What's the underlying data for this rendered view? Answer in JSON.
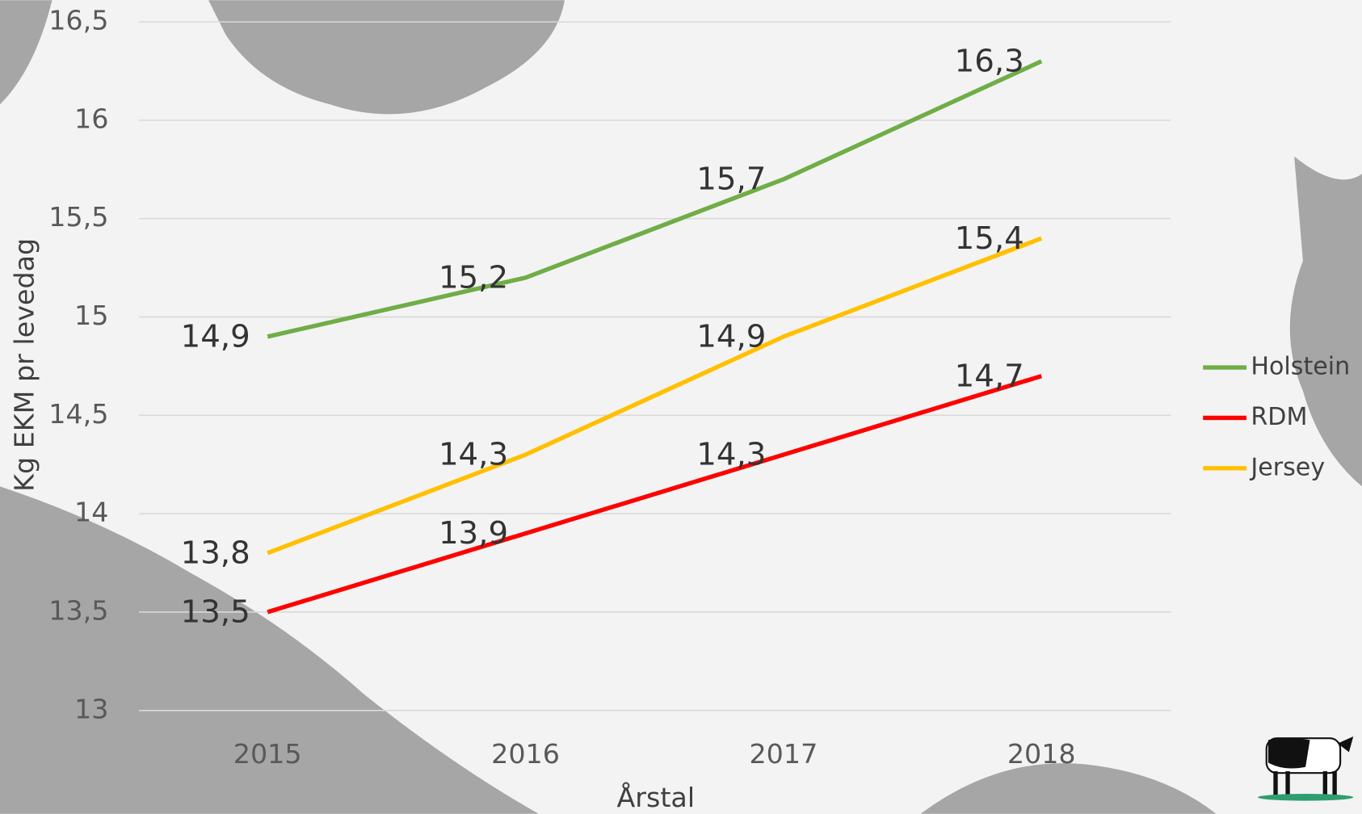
{
  "chart_data": {
    "type": "line",
    "categories": [
      "2015",
      "2016",
      "2017",
      "2018"
    ],
    "series": [
      {
        "name": "Holstein",
        "color": "#70ad47",
        "values": [
          14.9,
          15.2,
          15.7,
          16.3
        ],
        "value_labels": [
          "14,9",
          "15,2",
          "15,7",
          "16,3"
        ]
      },
      {
        "name": "RDM",
        "color": "#ff0000",
        "values": [
          13.5,
          13.9,
          14.3,
          14.7
        ],
        "value_labels": [
          "13,5",
          "13,9",
          "14,3",
          "14,7"
        ]
      },
      {
        "name": "Jersey",
        "color": "#ffc000",
        "values": [
          13.8,
          14.3,
          14.9,
          15.4
        ],
        "value_labels": [
          "13,8",
          "14,3",
          "14,9",
          "15,4"
        ]
      }
    ],
    "x_label": "Årstal",
    "y_label": "Kg EKM pr levedag",
    "ylim": [
      13,
      16.5
    ],
    "yticks": [
      13,
      {
        "value": 13.5,
        "label": "13,5"
      },
      14,
      {
        "value": 14.5,
        "label": "14,5"
      },
      15,
      {
        "value": 15.5,
        "label": "15,5"
      },
      16,
      {
        "value": 16.5,
        "label": "16,5"
      }
    ],
    "grid": true,
    "legend": "right"
  }
}
